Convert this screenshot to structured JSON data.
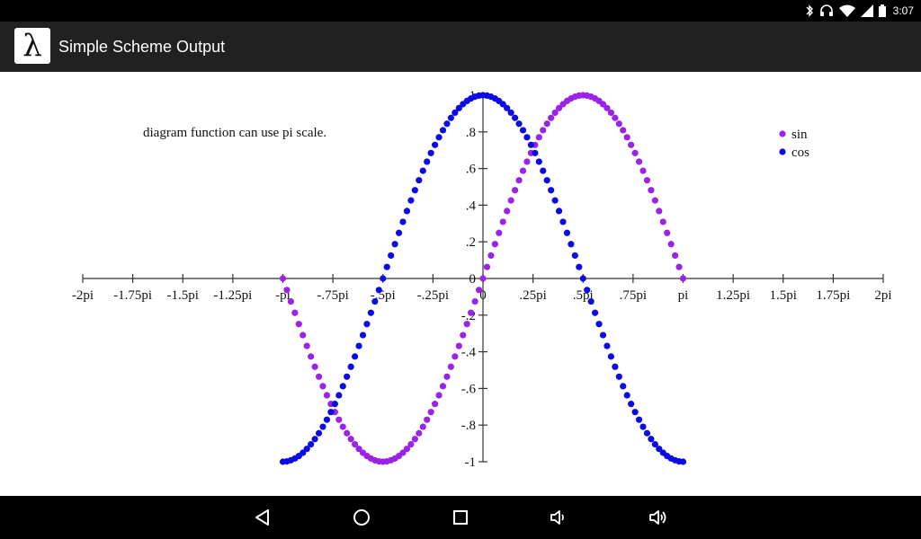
{
  "status_bar": {
    "time": "3:07",
    "icons": [
      "bluetooth-icon",
      "headphones-icon",
      "wifi-icon",
      "signal-icon",
      "battery-icon"
    ]
  },
  "app_bar": {
    "icon_glyph": "λ",
    "title": "Simple Scheme Output"
  },
  "chart_data": {
    "type": "scatter",
    "title": "diagram function can use pi scale.",
    "x_ticks": [
      {
        "x": -2.0,
        "label": "-2pi"
      },
      {
        "x": -1.75,
        "label": "-1.75pi"
      },
      {
        "x": -1.5,
        "label": "-1.5pi"
      },
      {
        "x": -1.25,
        "label": "-1.25pi"
      },
      {
        "x": -1.0,
        "label": "-pi"
      },
      {
        "x": -0.75,
        "label": "-.75pi"
      },
      {
        "x": -0.5,
        "label": "-.5pi"
      },
      {
        "x": -0.25,
        "label": "-.25pi"
      },
      {
        "x": 0.0,
        "label": "0"
      },
      {
        "x": 0.25,
        "label": ".25pi"
      },
      {
        "x": 0.5,
        "label": ".5pi"
      },
      {
        "x": 0.75,
        "label": ".75pi"
      },
      {
        "x": 1.0,
        "label": "pi"
      },
      {
        "x": 1.25,
        "label": "1.25pi"
      },
      {
        "x": 1.5,
        "label": "1.5pi"
      },
      {
        "x": 1.75,
        "label": "1.75pi"
      },
      {
        "x": 2.0,
        "label": "2pi"
      }
    ],
    "y_ticks": [
      {
        "y": 1.0,
        "label": "1"
      },
      {
        "y": 0.8,
        "label": ".8"
      },
      {
        "y": 0.6,
        "label": ".6"
      },
      {
        "y": 0.4,
        "label": ".4"
      },
      {
        "y": 0.2,
        "label": ".2"
      },
      {
        "y": 0.0,
        "label": "0"
      },
      {
        "y": -0.2,
        "label": "-.2"
      },
      {
        "y": -0.4,
        "label": "-.4"
      },
      {
        "y": -0.6,
        "label": "-.6"
      },
      {
        "y": -0.8,
        "label": "-.8"
      },
      {
        "y": -1.0,
        "label": "-1"
      }
    ],
    "xlim": [
      -2,
      2
    ],
    "ylim": [
      -1,
      1
    ],
    "x_unit": "pi",
    "grid": false,
    "legend_position": "top-right",
    "series": [
      {
        "name": "sin",
        "function": "sin(x)",
        "color": "#9b22e8",
        "x_range": [
          -1,
          1
        ],
        "step": 0.02
      },
      {
        "name": "cos",
        "function": "cos(x)",
        "color": "#0b0be8",
        "x_range": [
          -1,
          1
        ],
        "step": 0.02
      }
    ]
  }
}
